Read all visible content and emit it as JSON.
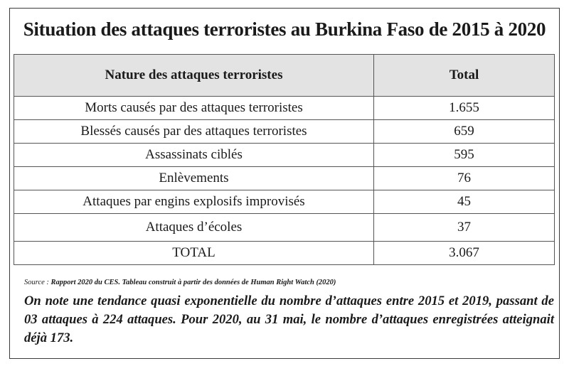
{
  "title": "Situation des attaques terroristes au Burkina Faso de 2015 à 2020",
  "table": {
    "headers": [
      "Nature des attaques terroristes",
      "Total"
    ],
    "rows": [
      {
        "nature": "Morts causés par des attaques terroristes",
        "total": "1.655"
      },
      {
        "nature": "Blessés causés par des attaques terroristes",
        "total": "659"
      },
      {
        "nature": "Assassinats ciblés",
        "total": "595"
      },
      {
        "nature": "Enlèvements",
        "total": "76"
      },
      {
        "nature": "Attaques par engins explosifs improvisés",
        "total": "45"
      },
      {
        "nature": "Attaques d’écoles",
        "total": "37"
      },
      {
        "nature": "TOTAL",
        "total": "3.067"
      }
    ]
  },
  "source": {
    "label": "Source : ",
    "text": "Rapport 2020 du CES. Tableau construit à partir des données de Human Right Watch (2020)"
  },
  "note": "On note une tendance quasi exponentielle du nombre d’attaques entre 2015 et 2019, passant de 03 attaques à 224 attaques. Pour 2020, au 31 mai, le nombre d’attaques enregistrées atteignait déjà 173."
}
